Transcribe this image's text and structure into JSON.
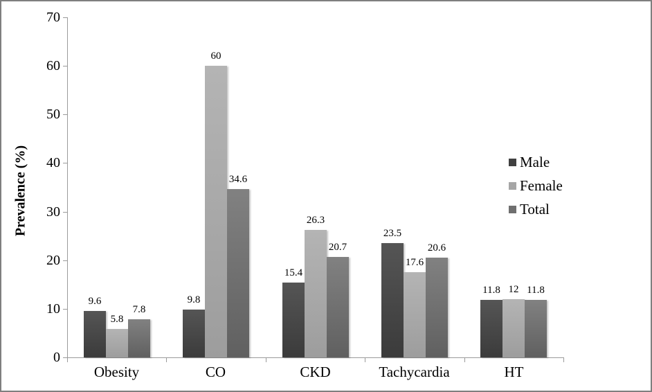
{
  "chart_data": {
    "type": "bar",
    "title": "",
    "xlabel": "",
    "ylabel": "Prevalence (%)",
    "categories": [
      "Obesity",
      "CO",
      "CKD",
      "Tachycardia",
      "HT"
    ],
    "series": [
      {
        "name": "Male",
        "values": [
          9.6,
          9.8,
          15.4,
          23.5,
          11.8
        ],
        "legend_color": "#404040",
        "gradient_top": "#555555",
        "gradient_bottom": "#3b3b3b"
      },
      {
        "name": "Female",
        "values": [
          5.8,
          60,
          26.3,
          17.6,
          12
        ],
        "legend_color": "#a6a6a6",
        "gradient_top": "#b4b4b4",
        "gradient_bottom": "#9d9d9d"
      },
      {
        "name": "Total",
        "values": [
          7.8,
          34.6,
          20.7,
          20.6,
          11.8
        ],
        "legend_color": "#6f6f6f",
        "gradient_top": "#818181",
        "gradient_bottom": "#606060"
      }
    ],
    "data_labels": [
      [
        "9.6",
        "9.8",
        "15.4",
        "23.5",
        "11.8"
      ],
      [
        "5.8",
        "60",
        "26.3",
        "17.6",
        "12"
      ],
      [
        "7.8",
        "34.6",
        "20.7",
        "20.6",
        "11.8"
      ]
    ],
    "y_ticks": [
      "0",
      "10",
      "20",
      "30",
      "40",
      "50",
      "60",
      "70"
    ],
    "ylim": [
      0,
      70
    ],
    "grid": false,
    "legend_position": "right",
    "axis_color": "#9a9a9a",
    "frame_color": "#7f7f7f"
  }
}
